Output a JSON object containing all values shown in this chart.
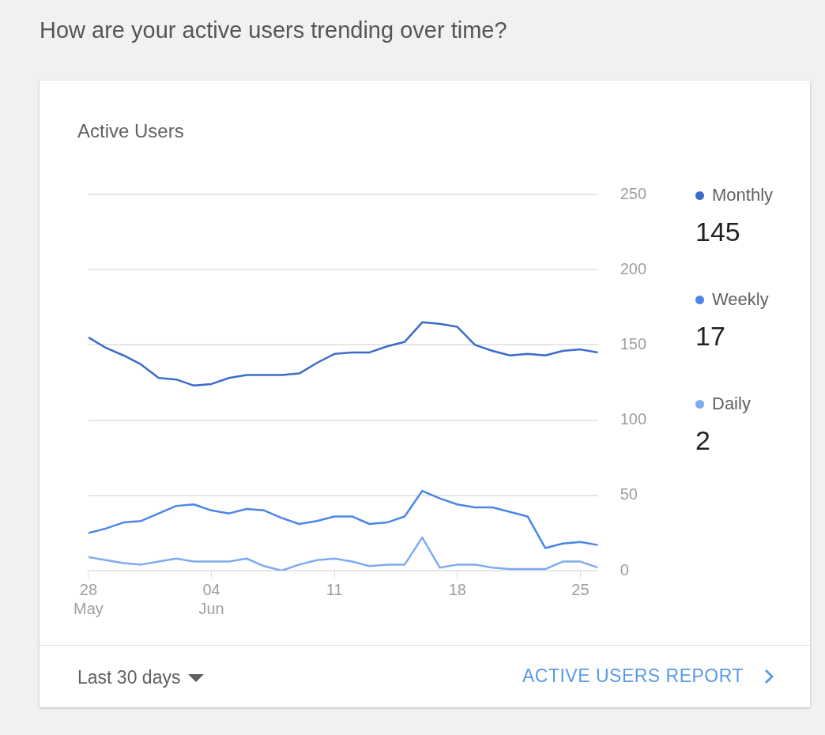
{
  "chart_data": {
    "type": "line",
    "title": "How are your active users trending over time?",
    "subtitle": "Active Users",
    "x": [
      "--05-28",
      "--05-29",
      "--05-30",
      "--05-31",
      "--06-01",
      "--06-02",
      "--06-03",
      "--06-04",
      "--06-05",
      "--06-06",
      "--06-07",
      "--06-08",
      "--06-09",
      "--06-10",
      "--06-11",
      "--06-12",
      "--06-13",
      "--06-14",
      "--06-15",
      "--06-16",
      "--06-17",
      "--06-18",
      "--06-19",
      "--06-20",
      "--06-21",
      "--06-22",
      "--06-23",
      "--06-24",
      "--06-25",
      "--06-26"
    ],
    "series": [
      {
        "name": "Monthly",
        "color": "#3b6ccc",
        "values": [
          155,
          148,
          143,
          137,
          128,
          127,
          123,
          124,
          128,
          130,
          130,
          130,
          131,
          138,
          144,
          145,
          145,
          149,
          152,
          165,
          164,
          162,
          150,
          146,
          143,
          144,
          143,
          146,
          147,
          145
        ]
      },
      {
        "name": "Weekly",
        "color": "#4a86e8",
        "values": [
          25,
          28,
          32,
          33,
          38,
          43,
          44,
          40,
          38,
          41,
          40,
          35,
          31,
          33,
          36,
          36,
          31,
          32,
          36,
          53,
          48,
          44,
          42,
          42,
          39,
          36,
          15,
          18,
          19,
          17
        ]
      },
      {
        "name": "Daily",
        "color": "#7eaaf2",
        "values": [
          9,
          7,
          5,
          4,
          6,
          8,
          6,
          6,
          6,
          8,
          3,
          0,
          4,
          7,
          8,
          6,
          3,
          4,
          4,
          22,
          2,
          4,
          4,
          2,
          1,
          1,
          1,
          6,
          6,
          2
        ]
      }
    ],
    "xlim": [
      "--05-28",
      "--06-26"
    ],
    "xticks": [
      {
        "value": "--05-28",
        "label": "28\nMay"
      },
      {
        "value": "--06-04",
        "label": "04\nJun"
      },
      {
        "value": "--06-11",
        "label": "11"
      },
      {
        "value": "--06-18",
        "label": "18"
      },
      {
        "value": "--06-25",
        "label": "25"
      }
    ],
    "ylim": [
      0,
      250
    ],
    "yticks": [
      0,
      50,
      100,
      150,
      200,
      250
    ],
    "grid": "y",
    "legend": "right",
    "annotations": [
      "145",
      "17",
      "2",
      "Last 30 days",
      "ACTIVE USERS REPORT"
    ]
  }
}
